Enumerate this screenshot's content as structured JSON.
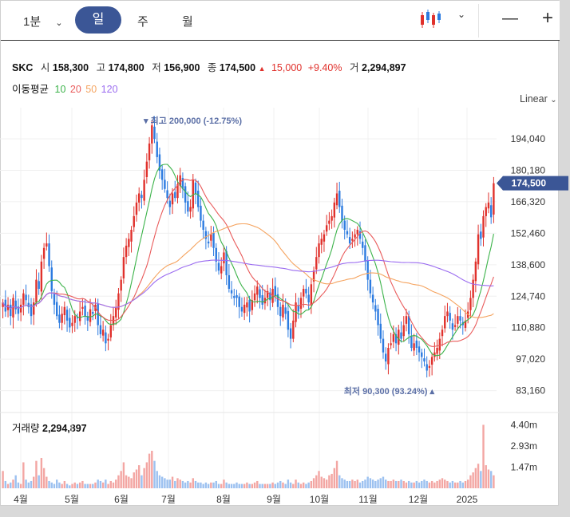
{
  "toolbar": {
    "interval": "1분",
    "tabs": [
      "일",
      "주",
      "월"
    ],
    "active_tab": "일",
    "chart_type_icon": "candlestick-icon",
    "minus": "—",
    "plus": "+"
  },
  "quote": {
    "symbol": "SKC",
    "open_label": "시",
    "open": "158,300",
    "high_label": "고",
    "high": "174,800",
    "low_label": "저",
    "low": "156,900",
    "close_label": "종",
    "close": "174,500",
    "change_arrow": "▲",
    "change": "15,000",
    "change_pct": "+9.40%",
    "volume_label": "거",
    "volume": "2,294,897"
  },
  "ma_legend": {
    "label": "이동평균",
    "items": [
      {
        "period": "10",
        "color": "#3cb34a"
      },
      {
        "period": "20",
        "color": "#e95b5b"
      },
      {
        "period": "50",
        "color": "#f5a460"
      },
      {
        "period": "120",
        "color": "#9b6cf0"
      }
    ]
  },
  "scale_mode": "Linear",
  "volume_panel": {
    "title": "거래량",
    "value": "2,294,897"
  },
  "colors": {
    "up": "#e0312c",
    "down": "#2c7be0",
    "accent": "#3b5696"
  },
  "chart_data": {
    "type": "candlestick",
    "ylim": [
      76000,
      206000
    ],
    "y_ticks": [
      "194,040",
      "180,180",
      "166,320",
      "152,460",
      "138,600",
      "124,740",
      "110,880",
      "97,020",
      "83,160"
    ],
    "y_tick_values": [
      194040,
      180180,
      166320,
      152460,
      138600,
      124740,
      110880,
      97020,
      83160
    ],
    "x_ticks": [
      "4월",
      "5월",
      "6월",
      "7월",
      "8월",
      "9월",
      "10월",
      "11월",
      "12월",
      "2025"
    ],
    "current_price": {
      "value": 174500,
      "label": "174,500"
    },
    "high_annotation": {
      "value": 200000,
      "label": "▾ 최고 200,000 (-12.75%)"
    },
    "low_annotation": {
      "value": 90300,
      "label": "최저 90,300 (93.24%) ▴"
    },
    "volume_ticks": [
      "4.40m",
      "2.93m",
      "1.47m"
    ],
    "volume_tick_values": [
      4.4,
      2.93,
      1.47
    ],
    "close_series": [
      122000,
      118000,
      121000,
      116000,
      124000,
      119000,
      117000,
      121000,
      126000,
      123000,
      120000,
      116000,
      122000,
      132000,
      128000,
      140000,
      146000,
      148000,
      138000,
      127000,
      121000,
      116000,
      113000,
      117000,
      120000,
      114000,
      111000,
      113000,
      116000,
      115000,
      118000,
      120000,
      116000,
      114000,
      119000,
      117000,
      121000,
      112000,
      108000,
      110000,
      104000,
      106000,
      112000,
      116000,
      120000,
      126000,
      132000,
      142000,
      147000,
      150000,
      154000,
      160000,
      166000,
      170000,
      168000,
      176000,
      184000,
      192000,
      200000,
      194000,
      186000,
      180000,
      176000,
      172000,
      168000,
      164000,
      170000,
      168000,
      174000,
      178000,
      172000,
      166000,
      162000,
      164000,
      176000,
      170000,
      164000,
      158000,
      154000,
      150000,
      148000,
      152000,
      146000,
      140000,
      136000,
      138000,
      144000,
      134000,
      128000,
      126000,
      124000,
      124000,
      120000,
      118000,
      121000,
      122000,
      118000,
      123000,
      126000,
      129000,
      124000,
      121000,
      124000,
      127000,
      123000,
      128000,
      125000,
      120000,
      116000,
      121000,
      117000,
      110000,
      106000,
      114000,
      122000,
      118000,
      124000,
      128000,
      126000,
      122000,
      130000,
      136000,
      142000,
      148000,
      150000,
      152000,
      156000,
      158000,
      160000,
      166000,
      170000,
      164000,
      158000,
      154000,
      152000,
      148000,
      150000,
      152000,
      154000,
      150000,
      146000,
      140000,
      132000,
      126000,
      122000,
      118000,
      112000,
      106000,
      100000,
      96000,
      102000,
      104000,
      108000,
      104000,
      110000,
      106000,
      112000,
      116000,
      108000,
      102000,
      104000,
      102000,
      100000,
      98000,
      96000,
      92000,
      94000,
      98000,
      100000,
      102000,
      106000,
      110000,
      116000,
      118000,
      114000,
      110000,
      112000,
      116000,
      114000,
      112000,
      114000,
      118000,
      124000,
      132000,
      140000,
      152000,
      150000,
      160000,
      164000,
      166000,
      159500,
      174500
    ],
    "volume_series": [
      1.2,
      0.5,
      0.3,
      0.4,
      0.6,
      0.9,
      0.4,
      0.3,
      1.8,
      0.6,
      0.4,
      0.5,
      0.8,
      1.9,
      0.9,
      2.1,
      1.4,
      0.8,
      0.5,
      0.4,
      0.3,
      0.6,
      0.4,
      0.3,
      0.5,
      0.3,
      0.2,
      0.3,
      0.4,
      0.3,
      0.4,
      0.5,
      0.3,
      0.3,
      0.3,
      0.3,
      0.4,
      0.6,
      0.5,
      0.4,
      0.6,
      0.3,
      0.5,
      0.4,
      0.6,
      0.9,
      1.2,
      1.8,
      0.9,
      0.8,
      0.7,
      1.1,
      1.3,
      1.6,
      0.9,
      1.4,
      1.8,
      2.4,
      2.6,
      1.9,
      1.2,
      0.9,
      0.8,
      0.7,
      0.6,
      0.6,
      0.8,
      0.5,
      0.7,
      0.6,
      0.5,
      0.4,
      0.5,
      0.4,
      0.7,
      0.5,
      0.4,
      0.4,
      0.3,
      0.4,
      0.3,
      0.4,
      0.4,
      0.5,
      0.3,
      0.3,
      0.6,
      0.4,
      0.3,
      0.3,
      0.3,
      0.4,
      0.3,
      0.3,
      0.3,
      0.4,
      0.3,
      0.3,
      0.4,
      0.5,
      0.3,
      0.3,
      0.3,
      0.3,
      0.3,
      0.4,
      0.3,
      0.4,
      0.5,
      0.4,
      0.3,
      0.6,
      0.4,
      0.3,
      0.6,
      0.4,
      0.3,
      0.4,
      0.3,
      0.4,
      0.5,
      0.7,
      0.9,
      1.2,
      0.8,
      0.7,
      0.6,
      0.9,
      1.0,
      1.4,
      1.9,
      0.9,
      0.7,
      0.6,
      0.5,
      0.5,
      0.6,
      0.5,
      0.6,
      0.4,
      0.5,
      0.6,
      0.8,
      0.7,
      0.6,
      0.5,
      0.6,
      0.7,
      0.8,
      0.6,
      0.5,
      0.5,
      0.6,
      0.5,
      0.5,
      0.6,
      0.5,
      0.4,
      0.5,
      0.4,
      0.4,
      0.5,
      0.4,
      0.5,
      0.6,
      0.5,
      0.4,
      0.5,
      0.4,
      0.5,
      0.6,
      0.7,
      0.6,
      0.5,
      0.4,
      0.5,
      0.4,
      0.4,
      0.5,
      0.4,
      0.5,
      0.6,
      0.9,
      1.1,
      1.4,
      1.7,
      1.2,
      4.4,
      1.6,
      1.3,
      1.2,
      0.9,
      2.29
    ]
  }
}
